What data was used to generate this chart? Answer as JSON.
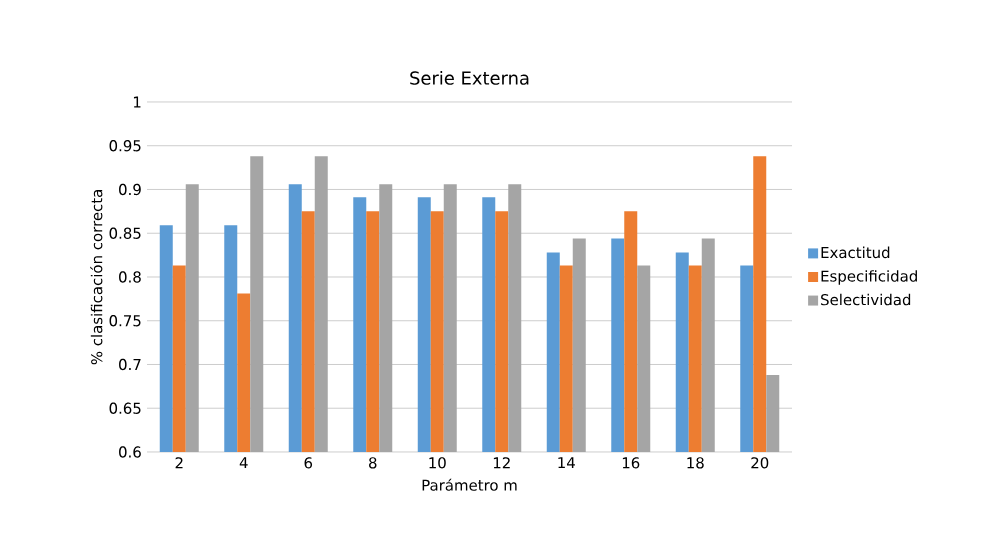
{
  "chart_data": {
    "type": "bar",
    "title": "Serie Externa",
    "xlabel": "Parámetro m",
    "ylabel": "% clasificación correcta",
    "categories": [
      "2",
      "4",
      "6",
      "8",
      "10",
      "12",
      "14",
      "16",
      "18",
      "20"
    ],
    "series": [
      {
        "name": "Exactitud",
        "color": "#5b9bd5",
        "values": [
          0.859,
          0.859,
          0.906,
          0.891,
          0.891,
          0.891,
          0.828,
          0.844,
          0.828,
          0.813
        ]
      },
      {
        "name": "Especificidad",
        "color": "#ed7d31",
        "values": [
          0.813,
          0.781,
          0.875,
          0.875,
          0.875,
          0.875,
          0.813,
          0.875,
          0.813,
          0.938
        ]
      },
      {
        "name": "Selectividad",
        "color": "#a5a5a5",
        "values": [
          0.906,
          0.938,
          0.938,
          0.906,
          0.906,
          0.906,
          0.844,
          0.813,
          0.844,
          0.688
        ]
      }
    ],
    "ylim": [
      0.6,
      1
    ],
    "yticks": [
      0.6,
      0.65,
      0.7,
      0.75,
      0.8,
      0.85,
      0.9,
      0.95,
      1
    ],
    "grid": "y",
    "legend": "right"
  }
}
